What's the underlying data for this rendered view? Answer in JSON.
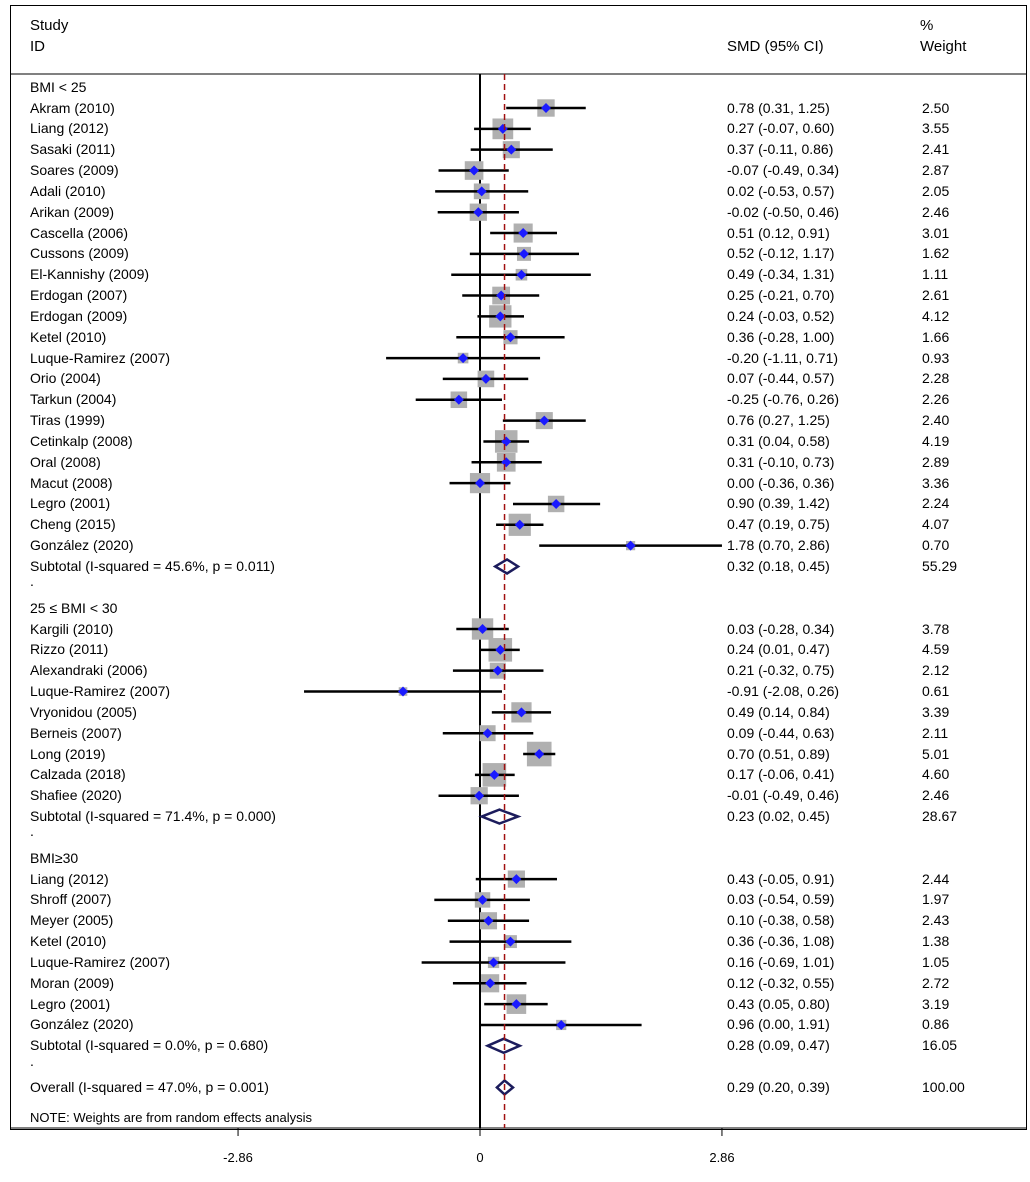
{
  "header": {
    "study_label": "Study",
    "id_label": "ID",
    "effect_label": "SMD (95% CI)",
    "weight_label_1": "%",
    "weight_label_2": "Weight"
  },
  "note": "NOTE: Weights are from random effects analysis",
  "colors": {
    "marker": "#1a1aff",
    "box": "#b0b0b0",
    "diamond": "#1c1c5c",
    "ref_line": "#a01010"
  },
  "chart_data": {
    "type": "forest",
    "xlabel": "",
    "x_ticks": [
      -2.86,
      0,
      2.86
    ],
    "x_tick_labels": [
      "-2.86",
      "0",
      "2.86"
    ],
    "overall_estimate_line": 0.29,
    "groups": [
      {
        "label": "BMI  < 25",
        "studies": [
          {
            "id": "Akram (2010)",
            "est": 0.78,
            "lo": 0.31,
            "hi": 1.25,
            "ci": "0.78 (0.31, 1.25)",
            "weight": "2.50"
          },
          {
            "id": "Liang (2012)",
            "est": 0.27,
            "lo": -0.07,
            "hi": 0.6,
            "ci": "0.27 (-0.07, 0.60)",
            "weight": "3.55"
          },
          {
            "id": "Sasaki (2011)",
            "est": 0.37,
            "lo": -0.11,
            "hi": 0.86,
            "ci": "0.37 (-0.11, 0.86)",
            "weight": "2.41"
          },
          {
            "id": "Soares (2009)",
            "est": -0.07,
            "lo": -0.49,
            "hi": 0.34,
            "ci": "-0.07 (-0.49, 0.34)",
            "weight": "2.87"
          },
          {
            "id": "Adali (2010)",
            "est": 0.02,
            "lo": -0.53,
            "hi": 0.57,
            "ci": "0.02 (-0.53, 0.57)",
            "weight": "2.05"
          },
          {
            "id": "Arikan (2009)",
            "est": -0.02,
            "lo": -0.5,
            "hi": 0.46,
            "ci": "-0.02 (-0.50, 0.46)",
            "weight": "2.46"
          },
          {
            "id": "Cascella (2006)",
            "est": 0.51,
            "lo": 0.12,
            "hi": 0.91,
            "ci": "0.51 (0.12, 0.91)",
            "weight": "3.01"
          },
          {
            "id": "Cussons (2009)",
            "est": 0.52,
            "lo": -0.12,
            "hi": 1.17,
            "ci": "0.52 (-0.12, 1.17)",
            "weight": "1.62"
          },
          {
            "id": "El-Kannishy (2009)",
            "est": 0.49,
            "lo": -0.34,
            "hi": 1.31,
            "ci": "0.49 (-0.34, 1.31)",
            "weight": "1.11"
          },
          {
            "id": "Erdogan (2007)",
            "est": 0.25,
            "lo": -0.21,
            "hi": 0.7,
            "ci": "0.25 (-0.21, 0.70)",
            "weight": "2.61"
          },
          {
            "id": "Erdogan (2009)",
            "est": 0.24,
            "lo": -0.03,
            "hi": 0.52,
            "ci": "0.24 (-0.03, 0.52)",
            "weight": "4.12"
          },
          {
            "id": "Ketel (2010)",
            "est": 0.36,
            "lo": -0.28,
            "hi": 1.0,
            "ci": "0.36 (-0.28, 1.00)",
            "weight": "1.66"
          },
          {
            "id": "Luque-Ramirez (2007)",
            "est": -0.2,
            "lo": -1.11,
            "hi": 0.71,
            "ci": "-0.20 (-1.11, 0.71)",
            "weight": "0.93"
          },
          {
            "id": "Orio (2004)",
            "est": 0.07,
            "lo": -0.44,
            "hi": 0.57,
            "ci": "0.07 (-0.44, 0.57)",
            "weight": "2.28"
          },
          {
            "id": "Tarkun (2004)",
            "est": -0.25,
            "lo": -0.76,
            "hi": 0.26,
            "ci": "-0.25 (-0.76, 0.26)",
            "weight": "2.26"
          },
          {
            "id": "Tiras (1999)",
            "est": 0.76,
            "lo": 0.27,
            "hi": 1.25,
            "ci": "0.76 (0.27, 1.25)",
            "weight": "2.40"
          },
          {
            "id": "Cetinkalp (2008)",
            "est": 0.31,
            "lo": 0.04,
            "hi": 0.58,
            "ci": "0.31 (0.04, 0.58)",
            "weight": "4.19"
          },
          {
            "id": "Oral (2008)",
            "est": 0.31,
            "lo": -0.1,
            "hi": 0.73,
            "ci": "0.31 (-0.10, 0.73)",
            "weight": "2.89"
          },
          {
            "id": "Macut (2008)",
            "est": 0.0,
            "lo": -0.36,
            "hi": 0.36,
            "ci": "0.00 (-0.36, 0.36)",
            "weight": "3.36"
          },
          {
            "id": "Legro (2001)",
            "est": 0.9,
            "lo": 0.39,
            "hi": 1.42,
            "ci": "0.90 (0.39, 1.42)",
            "weight": "2.24"
          },
          {
            "id": "Cheng (2015)",
            "est": 0.47,
            "lo": 0.19,
            "hi": 0.75,
            "ci": "0.47 (0.19, 0.75)",
            "weight": "4.07"
          },
          {
            "id": "González (2020)",
            "est": 1.78,
            "lo": 0.7,
            "hi": 2.86,
            "ci": "1.78 (0.70, 2.86)",
            "weight": "0.70"
          }
        ],
        "subtotal": {
          "label": "Subtotal  (I-squared = 45.6%, p = 0.011)",
          "est": 0.32,
          "lo": 0.18,
          "hi": 0.45,
          "ci": "0.32 (0.18, 0.45)",
          "weight": "55.29"
        }
      },
      {
        "label": "25 ≤ BMI  < 30",
        "studies": [
          {
            "id": "Kargili (2010)",
            "est": 0.03,
            "lo": -0.28,
            "hi": 0.34,
            "ci": "0.03 (-0.28, 0.34)",
            "weight": "3.78"
          },
          {
            "id": "Rizzo (2011)",
            "est": 0.24,
            "lo": 0.01,
            "hi": 0.47,
            "ci": "0.24 (0.01, 0.47)",
            "weight": "4.59"
          },
          {
            "id": "Alexandraki (2006)",
            "est": 0.21,
            "lo": -0.32,
            "hi": 0.75,
            "ci": "0.21 (-0.32, 0.75)",
            "weight": "2.12"
          },
          {
            "id": "Luque-Ramirez (2007)",
            "est": -0.91,
            "lo": -2.08,
            "hi": 0.26,
            "ci": "-0.91 (-2.08, 0.26)",
            "weight": "0.61"
          },
          {
            "id": "Vryonidou (2005)",
            "est": 0.49,
            "lo": 0.14,
            "hi": 0.84,
            "ci": "0.49 (0.14, 0.84)",
            "weight": "3.39"
          },
          {
            "id": "Berneis (2007)",
            "est": 0.09,
            "lo": -0.44,
            "hi": 0.63,
            "ci": "0.09 (-0.44, 0.63)",
            "weight": "2.11"
          },
          {
            "id": "Long (2019)",
            "est": 0.7,
            "lo": 0.51,
            "hi": 0.89,
            "ci": "0.70 (0.51, 0.89)",
            "weight": "5.01"
          },
          {
            "id": "Calzada (2018)",
            "est": 0.17,
            "lo": -0.06,
            "hi": 0.41,
            "ci": "0.17 (-0.06, 0.41)",
            "weight": "4.60"
          },
          {
            "id": "Shafiee (2020)",
            "est": -0.01,
            "lo": -0.49,
            "hi": 0.46,
            "ci": "-0.01 (-0.49, 0.46)",
            "weight": "2.46"
          }
        ],
        "subtotal": {
          "label": "Subtotal  (I-squared = 71.4%, p = 0.000)",
          "est": 0.23,
          "lo": 0.02,
          "hi": 0.45,
          "ci": "0.23 (0.02, 0.45)",
          "weight": "28.67"
        }
      },
      {
        "label": "BMI≥30",
        "studies": [
          {
            "id": "Liang (2012)",
            "est": 0.43,
            "lo": -0.05,
            "hi": 0.91,
            "ci": "0.43 (-0.05, 0.91)",
            "weight": "2.44"
          },
          {
            "id": "Shroff (2007)",
            "est": 0.03,
            "lo": -0.54,
            "hi": 0.59,
            "ci": "0.03 (-0.54, 0.59)",
            "weight": "1.97"
          },
          {
            "id": "Meyer (2005)",
            "est": 0.1,
            "lo": -0.38,
            "hi": 0.58,
            "ci": "0.10 (-0.38, 0.58)",
            "weight": "2.43"
          },
          {
            "id": "Ketel (2010)",
            "est": 0.36,
            "lo": -0.36,
            "hi": 1.08,
            "ci": "0.36 (-0.36, 1.08)",
            "weight": "1.38"
          },
          {
            "id": "Luque-Ramirez (2007)",
            "est": 0.16,
            "lo": -0.69,
            "hi": 1.01,
            "ci": "0.16 (-0.69, 1.01)",
            "weight": "1.05"
          },
          {
            "id": "Moran (2009)",
            "est": 0.12,
            "lo": -0.32,
            "hi": 0.55,
            "ci": "0.12 (-0.32, 0.55)",
            "weight": "2.72"
          },
          {
            "id": "Legro (2001)",
            "est": 0.43,
            "lo": 0.05,
            "hi": 0.8,
            "ci": "0.43 (0.05, 0.80)",
            "weight": "3.19"
          },
          {
            "id": "González (2020)",
            "est": 0.96,
            "lo": 0.0,
            "hi": 1.91,
            "ci": "0.96 (0.00, 1.91)",
            "weight": "0.86"
          }
        ],
        "subtotal": {
          "label": "Subtotal  (I-squared = 0.0%, p = 0.680)",
          "est": 0.28,
          "lo": 0.09,
          "hi": 0.47,
          "ci": "0.28 (0.09, 0.47)",
          "weight": "16.05"
        }
      }
    ],
    "overall": {
      "label": "Overall  (I-squared = 47.0%, p = 0.001)",
      "est": 0.29,
      "lo": 0.2,
      "hi": 0.39,
      "ci": "0.29 (0.20, 0.39)",
      "weight": "100.00"
    }
  }
}
